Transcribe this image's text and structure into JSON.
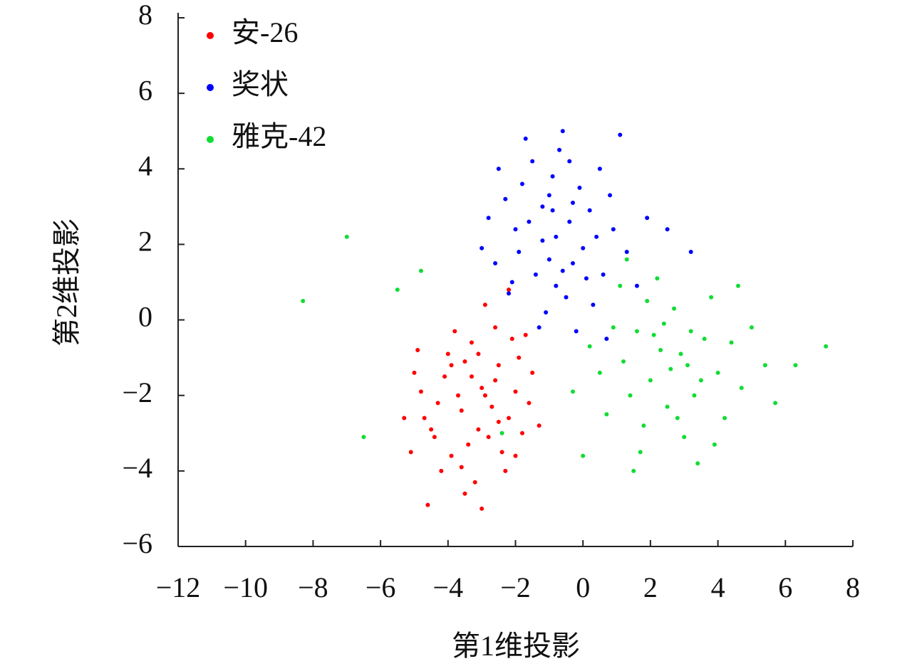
{
  "chart_data": {
    "type": "scatter",
    "x_label": "第1维投影",
    "y_label": "第2维投影",
    "xlim": [
      -12,
      8
    ],
    "ylim": [
      -6,
      8
    ],
    "xticks": [
      {
        "value": -12,
        "label": "−12"
      },
      {
        "value": -10,
        "label": "−10"
      },
      {
        "value": -8,
        "label": "−8"
      },
      {
        "value": -6,
        "label": "−6"
      },
      {
        "value": -4,
        "label": "−4"
      },
      {
        "value": -2,
        "label": "−2"
      },
      0,
      2,
      4,
      6,
      8
    ],
    "yticks": [
      {
        "value": -6,
        "label": "−6"
      },
      {
        "value": -4,
        "label": "−4"
      },
      {
        "value": -2,
        "label": "−2"
      },
      0,
      2,
      4,
      6,
      8
    ],
    "legend": "upper left",
    "series": [
      {
        "name": "安-26",
        "color": "#ff0000",
        "x": [
          -3.0,
          -2.5,
          -3.6,
          -4.1,
          -2.2,
          -3.3,
          -2.8,
          -4.5,
          -1.9,
          -3.9,
          -2.6,
          -4.8,
          -3.1,
          -2.0,
          -3.5,
          -4.2,
          -2.4,
          -5.0,
          -1.6,
          -3.8,
          -2.9,
          -4.6,
          -3.2,
          -2.1,
          -5.3,
          -1.5,
          -3.7,
          -2.7,
          -4.3,
          -3.4,
          -2.3,
          -4.0,
          -1.8,
          -5.1,
          -3.0,
          -2.6,
          -3.9,
          -4.4,
          -2.2,
          -1.3,
          -3.3,
          -2.9,
          -3.6,
          -4.9,
          -2.0,
          -3.1,
          -1.7,
          -4.7,
          -3.5,
          -2.5
        ],
        "y": [
          -1.8,
          -1.2,
          -2.4,
          -1.5,
          -2.6,
          -0.6,
          -3.1,
          -2.9,
          -1.0,
          -3.6,
          -0.2,
          -1.9,
          -2.9,
          -1.9,
          -1.1,
          -4.0,
          -3.5,
          -1.4,
          -2.2,
          -0.3,
          0.4,
          -4.9,
          -4.3,
          -0.5,
          -2.6,
          -1.4,
          -2.0,
          -2.3,
          -2.2,
          -3.3,
          -4.0,
          -0.9,
          -3.0,
          -3.5,
          -5.0,
          -1.6,
          -1.2,
          -3.1,
          0.8,
          -2.8,
          -1.5,
          -2.0,
          -3.9,
          -0.8,
          -3.6,
          -0.9,
          -0.4,
          -2.6,
          -4.6,
          -2.7
        ]
      },
      {
        "name": "奖状",
        "color": "#0000ff",
        "x": [
          -0.8,
          -1.2,
          -0.3,
          -1.6,
          0.2,
          -0.9,
          -1.9,
          -0.5,
          0.6,
          -1.4,
          -0.1,
          -2.3,
          -0.7,
          0.9,
          -1.1,
          -2.0,
          -0.4,
          0.3,
          -1.5,
          -2.6,
          0.8,
          -1.0,
          -0.2,
          -1.8,
          1.3,
          -0.6,
          -2.8,
          0.0,
          -1.3,
          0.5,
          -2.2,
          -0.9,
          1.6,
          -1.7,
          -0.3,
          1.1,
          -2.5,
          0.1,
          -1.2,
          0.4,
          2.5,
          3.2,
          -0.6,
          -1.0,
          0.7,
          -2.1,
          -0.4,
          1.9,
          -3.0,
          -0.8
        ],
        "y": [
          2.2,
          3.0,
          1.5,
          2.6,
          2.9,
          3.8,
          1.8,
          0.6,
          1.2,
          1.2,
          3.5,
          3.2,
          4.5,
          2.4,
          0.2,
          2.4,
          2.6,
          0.4,
          4.2,
          1.5,
          3.3,
          1.6,
          -0.3,
          3.6,
          1.8,
          5.0,
          2.7,
          1.9,
          -0.2,
          4.0,
          0.7,
          2.9,
          0.9,
          4.8,
          3.1,
          4.9,
          4.0,
          1.1,
          2.1,
          2.2,
          2.4,
          1.8,
          1.3,
          3.3,
          -0.5,
          1.0,
          4.2,
          2.7,
          1.9,
          0.9
        ]
      },
      {
        "name": "雅克-42",
        "color": "#11dd33",
        "x": [
          2.3,
          1.6,
          3.1,
          2.0,
          3.6,
          1.2,
          2.7,
          4.0,
          1.9,
          2.5,
          3.3,
          0.9,
          4.4,
          2.1,
          1.4,
          3.8,
          2.9,
          0.5,
          4.7,
          1.8,
          3.0,
          2.2,
          5.0,
          0.2,
          3.5,
          1.1,
          4.2,
          2.6,
          5.4,
          1.7,
          3.9,
          0.7,
          2.4,
          4.6,
          1.3,
          3.2,
          -0.3,
          5.7,
          2.8,
          -5.5,
          -7.0,
          -8.3,
          -6.5,
          -4.8,
          6.3,
          7.2,
          0.0,
          1.5,
          -2.4,
          3.4
        ],
        "y": [
          -0.8,
          -0.3,
          -1.2,
          -1.6,
          -0.5,
          -1.1,
          0.3,
          -1.4,
          0.5,
          -2.3,
          -2.0,
          -0.2,
          -0.6,
          -0.4,
          -2.0,
          0.6,
          -0.9,
          -1.4,
          -1.8,
          -2.8,
          -3.1,
          1.1,
          -0.2,
          -0.7,
          -1.6,
          0.9,
          -2.6,
          -1.3,
          -1.2,
          -3.5,
          -3.3,
          -2.5,
          -0.1,
          0.9,
          1.6,
          -0.3,
          -1.9,
          -2.2,
          -2.6,
          0.8,
          2.2,
          0.5,
          -3.1,
          1.3,
          -1.2,
          -0.7,
          -3.6,
          -4.0,
          -3.0,
          -3.8
        ]
      }
    ]
  }
}
